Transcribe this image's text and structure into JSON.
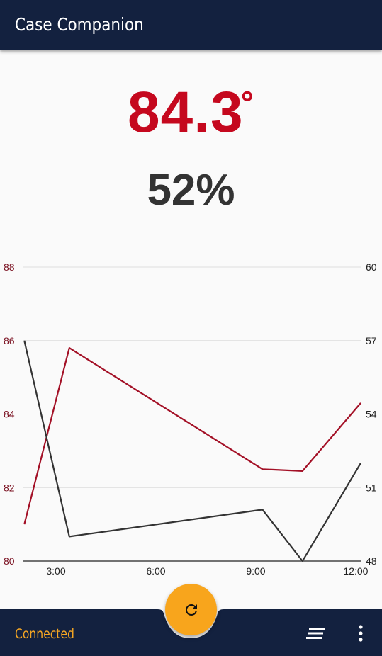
{
  "app_bar": {
    "title": "Case Companion"
  },
  "readings": {
    "temperature": "84.3",
    "temperature_unit": "°",
    "humidity": "52%"
  },
  "status_bar": {
    "status": "Connected"
  },
  "icons": {
    "refresh": "refresh-icon",
    "menu": "sort-menu-icon",
    "more": "more-vert-icon"
  },
  "colors": {
    "primary": "#13213f",
    "temperature": "#c5081e",
    "humidity": "#333333",
    "accent": "#f8a51c",
    "status": "#f5a623"
  },
  "chart_data": {
    "type": "line",
    "x_ticks": [
      "3:00",
      "6:00",
      "9:00",
      "12:00"
    ],
    "x_tick_values": [
      3,
      6,
      9,
      12
    ],
    "xlim": [
      2.0,
      12.15
    ],
    "left_axis": {
      "ticks": [
        "88",
        "86",
        "84",
        "82",
        "80"
      ],
      "ylim": [
        80,
        88
      ]
    },
    "right_axis": {
      "ticks": [
        "60",
        "57",
        "54",
        "51",
        "48"
      ],
      "ylim": [
        48,
        60
      ]
    },
    "grid": true,
    "legend": "none",
    "series": [
      {
        "axis": "left",
        "color": "#a31026",
        "x": [
          2.05,
          3.4,
          9.2,
          10.4,
          12.15
        ],
        "y": [
          81.0,
          85.8,
          82.5,
          82.45,
          84.3
        ]
      },
      {
        "axis": "right",
        "color": "#333333",
        "x": [
          2.05,
          3.4,
          9.2,
          10.4,
          12.15
        ],
        "y": [
          57.0,
          49.0,
          50.1,
          48.0,
          52.0
        ]
      }
    ]
  }
}
